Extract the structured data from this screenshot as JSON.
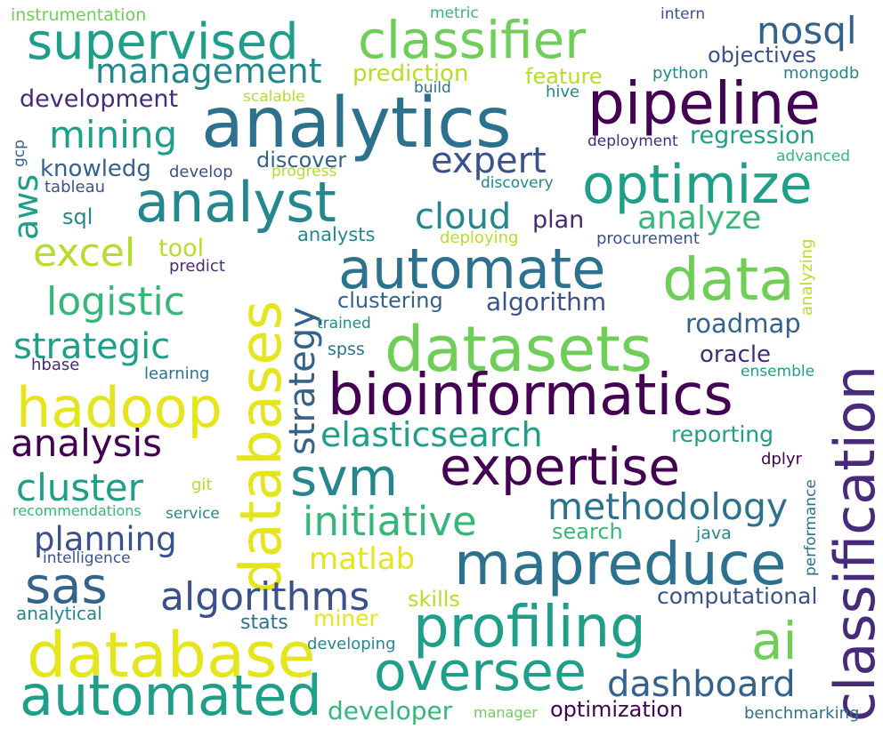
{
  "palette": {
    "navy": "#472a7a",
    "dark_purple": "#440154",
    "indigo": "#3b518b",
    "blue": "#2c728e",
    "slate": "#33638d",
    "teal_dark": "#24878e",
    "teal": "#1f9e89",
    "green": "#35b779",
    "light_green": "#6ece58",
    "lime": "#b5de2b",
    "yellow": "#e4e51d"
  },
  "words": [
    {
      "text": "instrumentation",
      "color": "#6ece58"
    },
    {
      "text": "metric",
      "color": "#35b779"
    },
    {
      "text": "intern",
      "color": "#3b518b"
    },
    {
      "text": "supervised",
      "color": "#1f9e89"
    },
    {
      "text": "classifier",
      "color": "#6ece58"
    },
    {
      "text": "nosql",
      "color": "#33638d"
    },
    {
      "text": "management",
      "color": "#24878e"
    },
    {
      "text": "objectives",
      "color": "#3b518b"
    },
    {
      "text": "prediction",
      "color": "#b5de2b"
    },
    {
      "text": "feature",
      "color": "#b5de2b"
    },
    {
      "text": "python",
      "color": "#24878e"
    },
    {
      "text": "mongodb",
      "color": "#24878e"
    },
    {
      "text": "analytics",
      "color": "#2c728e"
    },
    {
      "text": "pipeline",
      "color": "#440154"
    },
    {
      "text": "development",
      "color": "#472a7a"
    },
    {
      "text": "scalable",
      "color": "#b5de2b"
    },
    {
      "text": "build",
      "color": "#2c728e"
    },
    {
      "text": "hive",
      "color": "#24878e"
    },
    {
      "text": "mining",
      "color": "#1f9e89"
    },
    {
      "text": "regression",
      "color": "#1f9e89"
    },
    {
      "text": "deployment",
      "color": "#472a7a"
    },
    {
      "text": "gcp",
      "color": "#33638d"
    },
    {
      "text": "expert",
      "color": "#3b518b"
    },
    {
      "text": "knowledg",
      "color": "#33638d"
    },
    {
      "text": "discover",
      "color": "#33638d"
    },
    {
      "text": "develop",
      "color": "#3b518b"
    },
    {
      "text": "progress",
      "color": "#b5de2b"
    },
    {
      "text": "advanced",
      "color": "#35b779"
    },
    {
      "text": "optimize",
      "color": "#1f9e89"
    },
    {
      "text": "aws",
      "color": "#1f9e89"
    },
    {
      "text": "tableau",
      "color": "#3b518b"
    },
    {
      "text": "discovery",
      "color": "#24878e"
    },
    {
      "text": "analyst",
      "color": "#24878e"
    },
    {
      "text": "cloud",
      "color": "#24878e"
    },
    {
      "text": "plan",
      "color": "#472a7a"
    },
    {
      "text": "analyze",
      "color": "#35b779"
    },
    {
      "text": "analyzing",
      "color": "#b5de2b"
    },
    {
      "text": "sql",
      "color": "#24878e"
    },
    {
      "text": "analysts",
      "color": "#24878e"
    },
    {
      "text": "deploying",
      "color": "#b5de2b"
    },
    {
      "text": "procurement",
      "color": "#3b518b"
    },
    {
      "text": "excel",
      "color": "#b5de2b"
    },
    {
      "text": "tool",
      "color": "#b5de2b"
    },
    {
      "text": "predict",
      "color": "#472a7a"
    },
    {
      "text": "automate",
      "color": "#2c728e"
    },
    {
      "text": "data",
      "color": "#6ece58"
    },
    {
      "text": "classification",
      "color": "#472a7a"
    },
    {
      "text": "databases",
      "color": "#e4e51d"
    },
    {
      "text": "strategy",
      "color": "#33638d"
    },
    {
      "text": "logistic",
      "color": "#35b779"
    },
    {
      "text": "clustering",
      "color": "#33638d"
    },
    {
      "text": "algorithm",
      "color": "#3b518b"
    },
    {
      "text": "trained",
      "color": "#24878e"
    },
    {
      "text": "roadmap",
      "color": "#33638d"
    },
    {
      "text": "strategic",
      "color": "#1f9e89"
    },
    {
      "text": "datasets",
      "color": "#6ece58"
    },
    {
      "text": "spss",
      "color": "#2c728e"
    },
    {
      "text": "oracle",
      "color": "#472a7a"
    },
    {
      "text": "hbase",
      "color": "#472a7a"
    },
    {
      "text": "learning",
      "color": "#2c728e"
    },
    {
      "text": "ensemble",
      "color": "#1f9e89"
    },
    {
      "text": "hadoop",
      "color": "#e4e51d"
    },
    {
      "text": "bioinformatics",
      "color": "#440154"
    },
    {
      "text": "analysis",
      "color": "#440154"
    },
    {
      "text": "elasticsearch",
      "color": "#1f9e89"
    },
    {
      "text": "reporting",
      "color": "#1f9e89"
    },
    {
      "text": "svm",
      "color": "#24878e"
    },
    {
      "text": "expertise",
      "color": "#440154"
    },
    {
      "text": "dplyr",
      "color": "#440154"
    },
    {
      "text": "cluster",
      "color": "#1f9e89"
    },
    {
      "text": "git",
      "color": "#b5de2b"
    },
    {
      "text": "performance",
      "color": "#2c728e"
    },
    {
      "text": "recommendations",
      "color": "#35b779"
    },
    {
      "text": "service",
      "color": "#24878e"
    },
    {
      "text": "initiative",
      "color": "#35b779"
    },
    {
      "text": "methodology",
      "color": "#2c728e"
    },
    {
      "text": "planning",
      "color": "#3b518b"
    },
    {
      "text": "search",
      "color": "#35b779"
    },
    {
      "text": "java",
      "color": "#24878e"
    },
    {
      "text": "matlab",
      "color": "#e4e51d"
    },
    {
      "text": "intelligence",
      "color": "#3b518b"
    },
    {
      "text": "mapreduce",
      "color": "#2c728e"
    },
    {
      "text": "sas",
      "color": "#33638d"
    },
    {
      "text": "algorithms",
      "color": "#3b518b"
    },
    {
      "text": "skills",
      "color": "#b5de2b"
    },
    {
      "text": "computational",
      "color": "#3b518b"
    },
    {
      "text": "analytical",
      "color": "#24878e"
    },
    {
      "text": "stats",
      "color": "#2c728e"
    },
    {
      "text": "miner",
      "color": "#e4e51d"
    },
    {
      "text": "profiling",
      "color": "#1f9e89"
    },
    {
      "text": "ai",
      "color": "#6ece58"
    },
    {
      "text": "database",
      "color": "#e4e51d"
    },
    {
      "text": "developing",
      "color": "#24878e"
    },
    {
      "text": "oversee",
      "color": "#1f9e89"
    },
    {
      "text": "automated",
      "color": "#1f9e89"
    },
    {
      "text": "dashboard",
      "color": "#33638d"
    },
    {
      "text": "developer",
      "color": "#35b779"
    },
    {
      "text": "manager",
      "color": "#6ece58"
    },
    {
      "text": "optimization",
      "color": "#440154"
    },
    {
      "text": "benchmarking",
      "color": "#2c728e"
    }
  ]
}
